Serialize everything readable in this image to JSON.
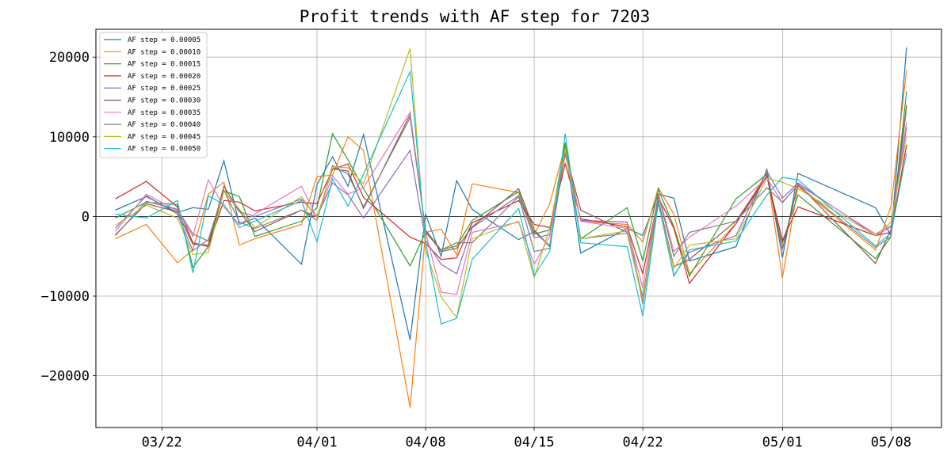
{
  "chart_data": {
    "type": "line",
    "title": "Profit trends with AF step for 7203",
    "xlabel": "",
    "ylabel": "",
    "grid": true,
    "legend_position": "top-left",
    "x_range": [
      "2024-03-17T18:00",
      "2024-05-11T06:00"
    ],
    "y_range": [
      -26500,
      23500
    ],
    "y_ticks": [
      -20000,
      -10000,
      0,
      10000,
      20000
    ],
    "y_tick_labels": [
      "−20000",
      "−10000",
      "0",
      "10000",
      "20000"
    ],
    "x_ticks": [
      "2024-03-22",
      "2024-04-01",
      "2024-04-08",
      "2024-04-15",
      "2024-04-22",
      "2024-05-01",
      "2024-05-08"
    ],
    "x_tick_labels": [
      "03/22",
      "04/01",
      "04/08",
      "04/15",
      "04/22",
      "05/01",
      "05/08"
    ],
    "x": [
      "2024-03-19",
      "2024-03-21",
      "2024-03-23",
      "2024-03-24",
      "2024-03-25",
      "2024-03-26",
      "2024-03-27",
      "2024-03-28",
      "2024-03-31",
      "2024-04-01",
      "2024-04-02",
      "2024-04-03",
      "2024-04-04",
      "2024-04-07",
      "2024-04-08",
      "2024-04-09",
      "2024-04-10",
      "2024-04-11",
      "2024-04-14",
      "2024-04-15",
      "2024-04-16",
      "2024-04-17",
      "2024-04-18",
      "2024-04-21",
      "2024-04-22",
      "2024-04-23",
      "2024-04-24",
      "2024-04-25",
      "2024-04-28",
      "2024-04-30",
      "2024-05-01",
      "2024-05-02",
      "2024-05-07",
      "2024-05-08",
      "2024-05-09"
    ],
    "series": [
      {
        "name": "AF step = 0.00005",
        "color": "#1f77b4",
        "values": [
          800,
          2500,
          500,
          1100,
          900,
          7000,
          -1000,
          -200,
          -6000,
          4000,
          7500,
          3800,
          10300,
          -15500,
          300,
          -5000,
          4500,
          900,
          -2900,
          -1900,
          -3700,
          8800,
          -4600,
          -1500,
          -2400,
          2800,
          2300,
          -5600,
          -3800,
          5900,
          -5200,
          5400,
          1100,
          -2400,
          21200
        ]
      },
      {
        "name": "AF step = 0.00010",
        "color": "#ff7f0e",
        "values": [
          -2800,
          -1000,
          -5800,
          -4200,
          2800,
          4300,
          -3600,
          -2800,
          -1000,
          5000,
          5200,
          10000,
          8300,
          -24000,
          -2000,
          -1600,
          -4800,
          4100,
          3000,
          -2300,
          1600,
          8900,
          -600,
          -1000,
          -3200,
          3600,
          300,
          -7200,
          -900,
          5500,
          -7700,
          3800,
          -4200,
          1300,
          18400
        ]
      },
      {
        "name": "AF step = 0.00015",
        "color": "#2ca02c",
        "values": [
          -200,
          1800,
          1500,
          -6400,
          -3800,
          3200,
          2500,
          -2500,
          -600,
          1100,
          10400,
          7100,
          3500,
          -6200,
          -2000,
          -4200,
          -3700,
          -500,
          3100,
          -2200,
          -1700,
          9300,
          -2800,
          1100,
          -5600,
          3400,
          -1300,
          -7500,
          2200,
          5300,
          -3300,
          2700,
          -5300,
          -2500,
          15700
        ]
      },
      {
        "name": "AF step = 0.00020",
        "color": "#d62728",
        "values": [
          2200,
          4400,
          1200,
          -3300,
          -3800,
          2000,
          1800,
          700,
          1800,
          1600,
          5900,
          6600,
          2400,
          -2600,
          -3400,
          -5400,
          -5200,
          -800,
          2000,
          -1000,
          -1400,
          6600,
          -300,
          -1300,
          -7200,
          2400,
          -1500,
          -8400,
          -900,
          5000,
          -3000,
          1200,
          -2400,
          -2000,
          9000
        ]
      },
      {
        "name": "AF step = 0.00025",
        "color": "#9467bd",
        "values": [
          -1500,
          2600,
          300,
          -4300,
          -2900,
          3300,
          600,
          0,
          2200,
          0,
          4200,
          2700,
          -200,
          8300,
          -3000,
          -6000,
          -7200,
          -1400,
          2600,
          -2700,
          -2300,
          7800,
          -500,
          -700,
          -11000,
          1900,
          -7400,
          -4500,
          -2400,
          5700,
          2300,
          4200,
          -2400,
          -1300,
          11200
        ]
      },
      {
        "name": "AF step = 0.00030",
        "color": "#8c564b",
        "values": [
          -2300,
          1600,
          600,
          -3500,
          -3600,
          3800,
          700,
          -1900,
          800,
          -100,
          6000,
          5700,
          1000,
          12800,
          -1800,
          -4400,
          -4000,
          -1300,
          3500,
          -1700,
          -3800,
          8100,
          800,
          -2000,
          -10200,
          2000,
          -6300,
          -5400,
          -600,
          5100,
          -4100,
          4100,
          -5900,
          -1600,
          14000
        ]
      },
      {
        "name": "AF step = 0.00035",
        "color": "#e377c2",
        "values": [
          -1900,
          2800,
          700,
          -2500,
          4600,
          1200,
          -1000,
          300,
          3800,
          -200,
          5100,
          2800,
          3600,
          13100,
          -2000,
          -9500,
          -9800,
          -2000,
          -700,
          -6000,
          -2500,
          8200,
          -600,
          -1500,
          -9000,
          2900,
          -4400,
          -2600,
          1300,
          4800,
          1700,
          4000,
          -2200,
          -1100,
          11800
        ]
      },
      {
        "name": "AF step = 0.00040",
        "color": "#7f7f7f",
        "values": [
          -2400,
          1900,
          900,
          -2200,
          -3100,
          3300,
          -700,
          -1500,
          800,
          -500,
          6400,
          5300,
          1200,
          12400,
          -1700,
          -4200,
          -3300,
          -3300,
          2500,
          -4400,
          -4000,
          8400,
          -2800,
          -2100,
          -10600,
          2700,
          -5000,
          -2000,
          -600,
          3600,
          1800,
          3900,
          -3900,
          -2500,
          13600
        ]
      },
      {
        "name": "AF step = 0.00045",
        "color": "#bcbd22",
        "values": [
          -1100,
          1400,
          -200,
          -4800,
          -4500,
          3200,
          900,
          -1400,
          2500,
          -200,
          6200,
          6100,
          4100,
          21100,
          -4200,
          -10100,
          -12700,
          -2800,
          -600,
          -7700,
          -1400,
          8500,
          -2800,
          -1800,
          -10500,
          1600,
          -6500,
          -3600,
          -2800,
          4800,
          4300,
          3500,
          -2400,
          -700,
          10100
        ]
      },
      {
        "name": "AF step = 0.00050",
        "color": "#17becf",
        "values": [
          300,
          -200,
          2000,
          -7100,
          2600,
          1500,
          -1400,
          -600,
          2000,
          -3200,
          4700,
          1300,
          5300,
          18200,
          -3200,
          -13500,
          -12800,
          -5400,
          1000,
          -7400,
          -4400,
          10400,
          -3300,
          -3800,
          -12500,
          1800,
          -7500,
          -4200,
          -3100,
          2700,
          4900,
          4600,
          -3700,
          -2100,
          8000
        ]
      }
    ]
  }
}
